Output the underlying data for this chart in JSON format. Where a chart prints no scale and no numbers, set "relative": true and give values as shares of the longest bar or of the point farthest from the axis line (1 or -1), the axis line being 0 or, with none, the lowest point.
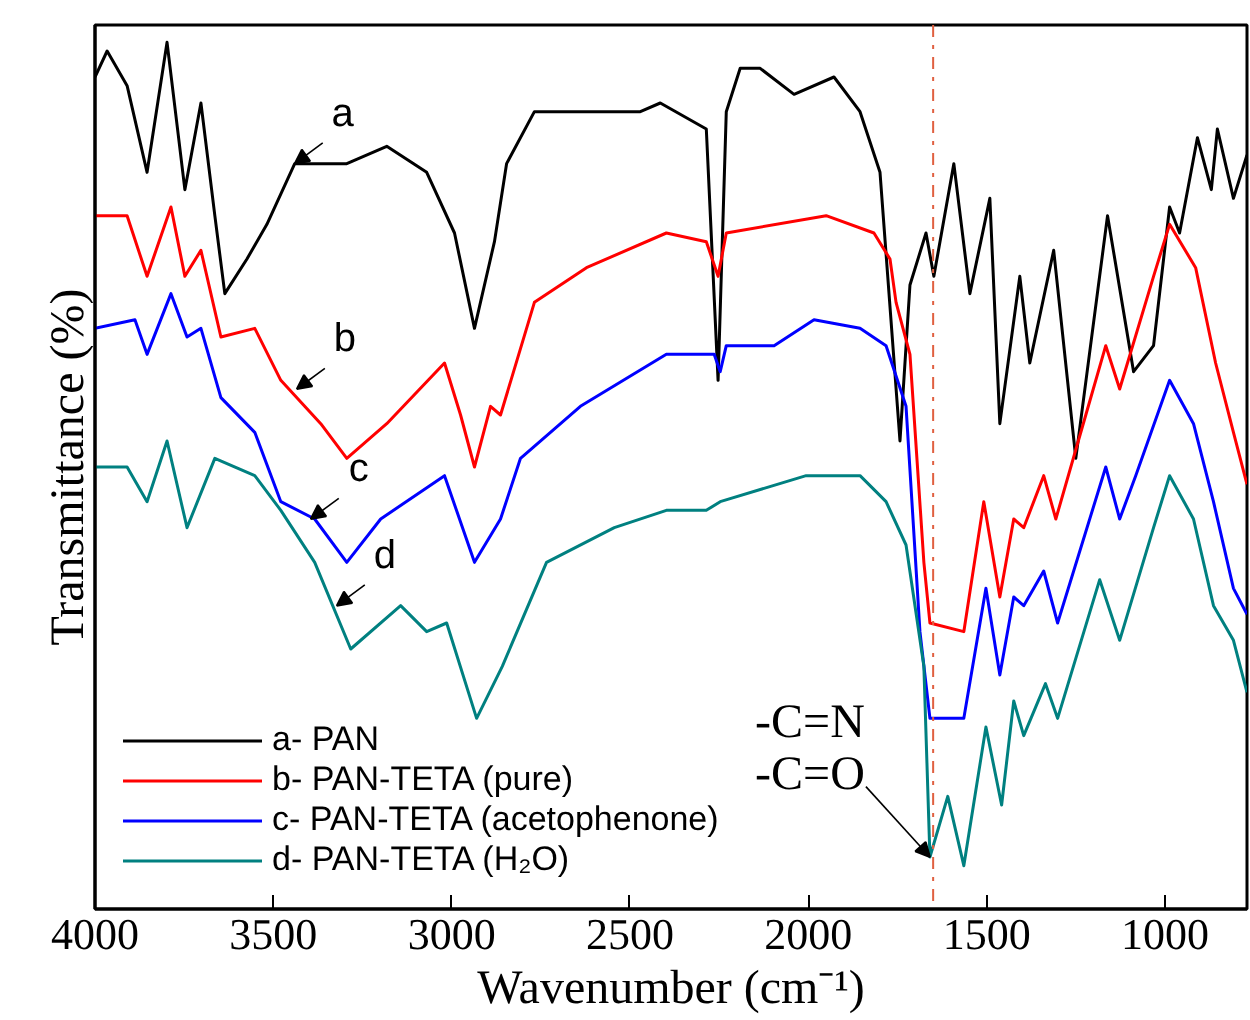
{
  "chart_data": {
    "type": "line",
    "relative": true,
    "xlabel": "Wavenumber (cm⁻¹)",
    "ylabel": "Transmittance (%)",
    "xlim": [
      4000,
      770
    ],
    "xticks": [
      4000,
      3500,
      3000,
      2500,
      2000,
      1500,
      1000
    ],
    "tick_labels": "x",
    "grid": false,
    "legend": "bottom left",
    "line_style": "solid",
    "marker": "none",
    "ref_lines": [
      {
        "axis": "x",
        "value": 1650,
        "color": "#e06040",
        "line_style": "dashdot"
      }
    ],
    "annotations": [
      {
        "text": "a",
        "x": 3440,
        "y": 0.86
      },
      {
        "text": "b",
        "x": 3434,
        "y": 0.6
      },
      {
        "text": "c",
        "x": 3395,
        "y": 0.45
      },
      {
        "text": "d",
        "x": 3322,
        "y": 0.35
      },
      {
        "text": "-C=N",
        "x": 1659,
        "y": 0.06
      },
      {
        "text": "-C=O",
        "x": 1659,
        "y": 0.06
      }
    ],
    "series": [
      {
        "name": "a- PAN",
        "color": "#000000",
        "x": [
          4000,
          3966,
          3910,
          3854,
          3798,
          3748,
          3703,
          3664,
          3636,
          3574,
          3518,
          3440,
          3294,
          3182,
          3070,
          2992,
          2936,
          2880,
          2846,
          2768,
          2639,
          2471,
          2415,
          2286,
          2253,
          2230,
          2191,
          2135,
          2040,
          1928,
          1855,
          1799,
          1743,
          1715,
          1670,
          1648,
          1592,
          1547,
          1491,
          1463,
          1407,
          1379,
          1312,
          1250,
          1161,
          1088,
          1032,
          987,
          959,
          909,
          870,
          853,
          808,
          770
        ],
        "values": [
          0.96,
          0.99,
          0.95,
          0.85,
          1.0,
          0.83,
          0.93,
          0.8,
          0.71,
          0.75,
          0.79,
          0.86,
          0.86,
          0.88,
          0.85,
          0.78,
          0.67,
          0.77,
          0.86,
          0.92,
          0.92,
          0.92,
          0.93,
          0.9,
          0.61,
          0.92,
          0.97,
          0.97,
          0.94,
          0.96,
          0.92,
          0.85,
          0.54,
          0.72,
          0.78,
          0.73,
          0.86,
          0.71,
          0.82,
          0.56,
          0.73,
          0.63,
          0.76,
          0.52,
          0.8,
          0.62,
          0.65,
          0.81,
          0.78,
          0.89,
          0.83,
          0.9,
          0.82,
          0.87
        ]
      },
      {
        "name": "b- PAN-TETA (pure)",
        "color": "#ff0000",
        "x": [
          4000,
          3910,
          3854,
          3787,
          3748,
          3703,
          3647,
          3552,
          3479,
          3367,
          3294,
          3182,
          3020,
          2975,
          2936,
          2891,
          2863,
          2768,
          2622,
          2398,
          2286,
          2253,
          2230,
          1950,
          1816,
          1771,
          1754,
          1715,
          1676,
          1659,
          1564,
          1508,
          1463,
          1424,
          1396,
          1340,
          1306,
          1222,
          1166,
          1127,
          1032,
          987,
          914,
          858,
          808,
          770
        ],
        "values": [
          0.8,
          0.8,
          0.73,
          0.81,
          0.73,
          0.76,
          0.66,
          0.67,
          0.61,
          0.56,
          0.52,
          0.56,
          0.63,
          0.57,
          0.51,
          0.58,
          0.57,
          0.7,
          0.74,
          0.78,
          0.77,
          0.73,
          0.78,
          0.8,
          0.78,
          0.75,
          0.7,
          0.64,
          0.4,
          0.33,
          0.32,
          0.47,
          0.36,
          0.45,
          0.44,
          0.5,
          0.45,
          0.57,
          0.65,
          0.6,
          0.73,
          0.79,
          0.74,
          0.63,
          0.55,
          0.49
        ]
      },
      {
        "name": "c- PAN-TETA (acetophenone)",
        "color": "#0000ff",
        "x": [
          4000,
          3888,
          3854,
          3787,
          3742,
          3703,
          3647,
          3552,
          3479,
          3384,
          3294,
          3199,
          3020,
          2936,
          2863,
          2807,
          2639,
          2398,
          2264,
          2247,
          2230,
          2096,
          1984,
          1855,
          1782,
          1726,
          1687,
          1659,
          1564,
          1502,
          1463,
          1424,
          1396,
          1340,
          1301,
          1166,
          1127,
          1082,
          987,
          920,
          864,
          808,
          770
        ],
        "values": [
          0.67,
          0.68,
          0.64,
          0.71,
          0.66,
          0.67,
          0.59,
          0.55,
          0.47,
          0.45,
          0.4,
          0.45,
          0.5,
          0.4,
          0.45,
          0.52,
          0.58,
          0.64,
          0.64,
          0.62,
          0.65,
          0.65,
          0.68,
          0.67,
          0.65,
          0.58,
          0.32,
          0.22,
          0.22,
          0.37,
          0.27,
          0.36,
          0.35,
          0.39,
          0.33,
          0.51,
          0.45,
          0.5,
          0.61,
          0.56,
          0.47,
          0.37,
          0.34
        ]
      },
      {
        "name": "d- PAN-TETA (H₂O)",
        "color": "#008080",
        "x": [
          4000,
          3910,
          3854,
          3798,
          3742,
          3664,
          3552,
          3479,
          3384,
          3283,
          3143,
          3070,
          3014,
          2930,
          2858,
          2734,
          2544,
          2398,
          2286,
          2247,
          2006,
          1855,
          1782,
          1726,
          1676,
          1659,
          1609,
          1564,
          1502,
          1458,
          1424,
          1396,
          1335,
          1301,
          1183,
          1127,
          1032,
          987,
          920,
          864,
          808,
          770
        ],
        "values": [
          0.51,
          0.51,
          0.47,
          0.54,
          0.44,
          0.52,
          0.5,
          0.46,
          0.4,
          0.3,
          0.35,
          0.32,
          0.33,
          0.22,
          0.28,
          0.4,
          0.44,
          0.46,
          0.46,
          0.47,
          0.5,
          0.5,
          0.47,
          0.42,
          0.28,
          0.06,
          0.13,
          0.05,
          0.21,
          0.12,
          0.24,
          0.2,
          0.26,
          0.22,
          0.38,
          0.31,
          0.44,
          0.5,
          0.45,
          0.35,
          0.31,
          0.25
        ]
      }
    ]
  }
}
